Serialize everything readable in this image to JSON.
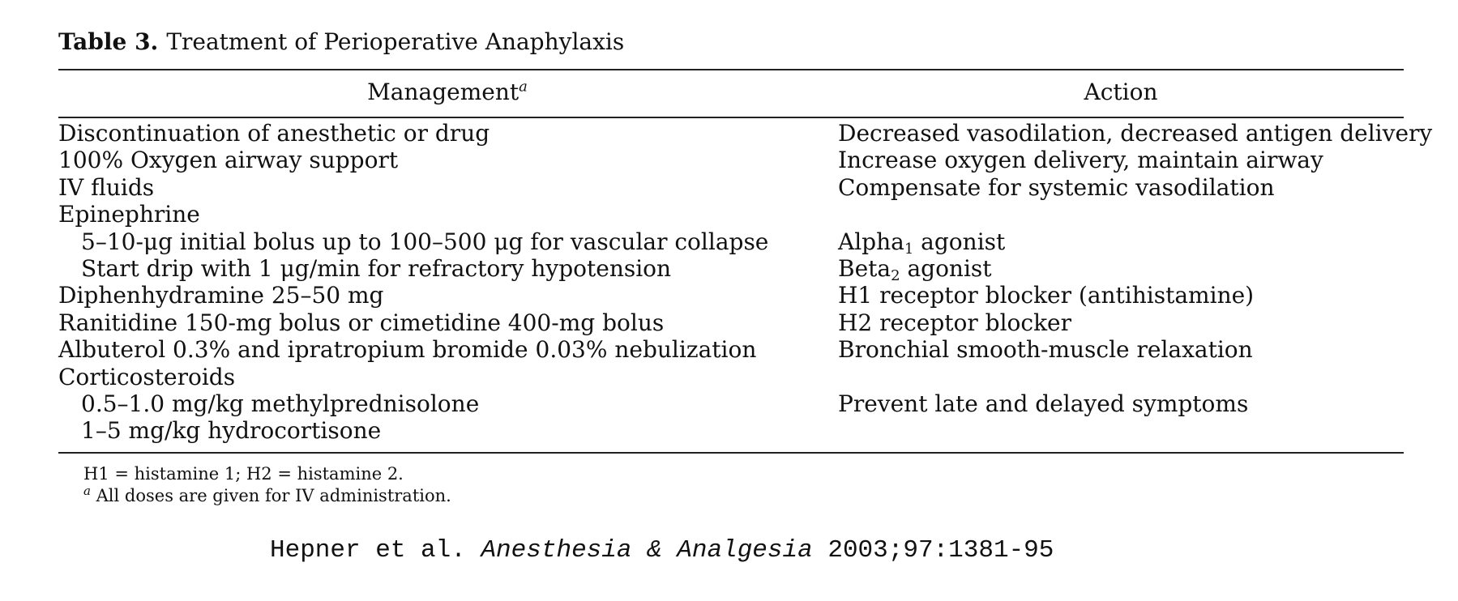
{
  "table": {
    "label": "Table 3.",
    "title": "Treatment of Perioperative Anaphylaxis",
    "headers": {
      "management": "Management",
      "management_marker": "a",
      "action": "Action"
    },
    "rows": [
      {
        "management": "Discontinuation of anesthetic or drug",
        "action": "Decreased vasodilation, decreased antigen delivery",
        "action_sub": "",
        "action_suffix": ""
      },
      {
        "management": "100% Oxygen airway support",
        "action": "Increase oxygen delivery, maintain airway",
        "action_sub": "",
        "action_suffix": ""
      },
      {
        "management": "IV fluids",
        "action": "Compensate for systemic vasodilation",
        "action_sub": "",
        "action_suffix": ""
      },
      {
        "management": "Epinephrine",
        "action": "",
        "action_sub": "",
        "action_suffix": ""
      },
      {
        "management": "5–10-μg initial bolus up to 100–500 μg for vascular collapse",
        "action": "Alpha",
        "action_sub": "1",
        "action_suffix": " agonist"
      },
      {
        "management": "Start drip with 1 μg/min for refractory hypotension",
        "action": "Beta",
        "action_sub": "2",
        "action_suffix": " agonist"
      },
      {
        "management": "Diphenhydramine 25–50 mg",
        "action": "H1 receptor blocker (antihistamine)",
        "action_sub": "",
        "action_suffix": ""
      },
      {
        "management": "Ranitidine 150-mg bolus or cimetidine 400-mg bolus",
        "action": "H2 receptor blocker",
        "action_sub": "",
        "action_suffix": ""
      },
      {
        "management": "Albuterol 0.3% and ipratropium bromide 0.03% nebulization",
        "action": "Bronchial smooth-muscle relaxation",
        "action_sub": "",
        "action_suffix": ""
      },
      {
        "management": "Corticosteroids",
        "action": "",
        "action_sub": "",
        "action_suffix": ""
      },
      {
        "management": "0.5–1.0 mg/kg methylprednisolone",
        "action": "Prevent late and delayed symptoms",
        "action_sub": "",
        "action_suffix": ""
      },
      {
        "management": "1–5 mg/kg hydrocortisone",
        "action": "",
        "action_sub": "",
        "action_suffix": ""
      }
    ],
    "footnotes": {
      "abbreviations": "H1 = histamine 1; H2 = histamine 2.",
      "a_marker": "a",
      "a_text": " All doses are given for IV administration."
    }
  },
  "citation": {
    "authors": "Hepner et al. ",
    "journal": "Anesthesia & Analgesia",
    "details": " 2003;97:1381-95"
  }
}
